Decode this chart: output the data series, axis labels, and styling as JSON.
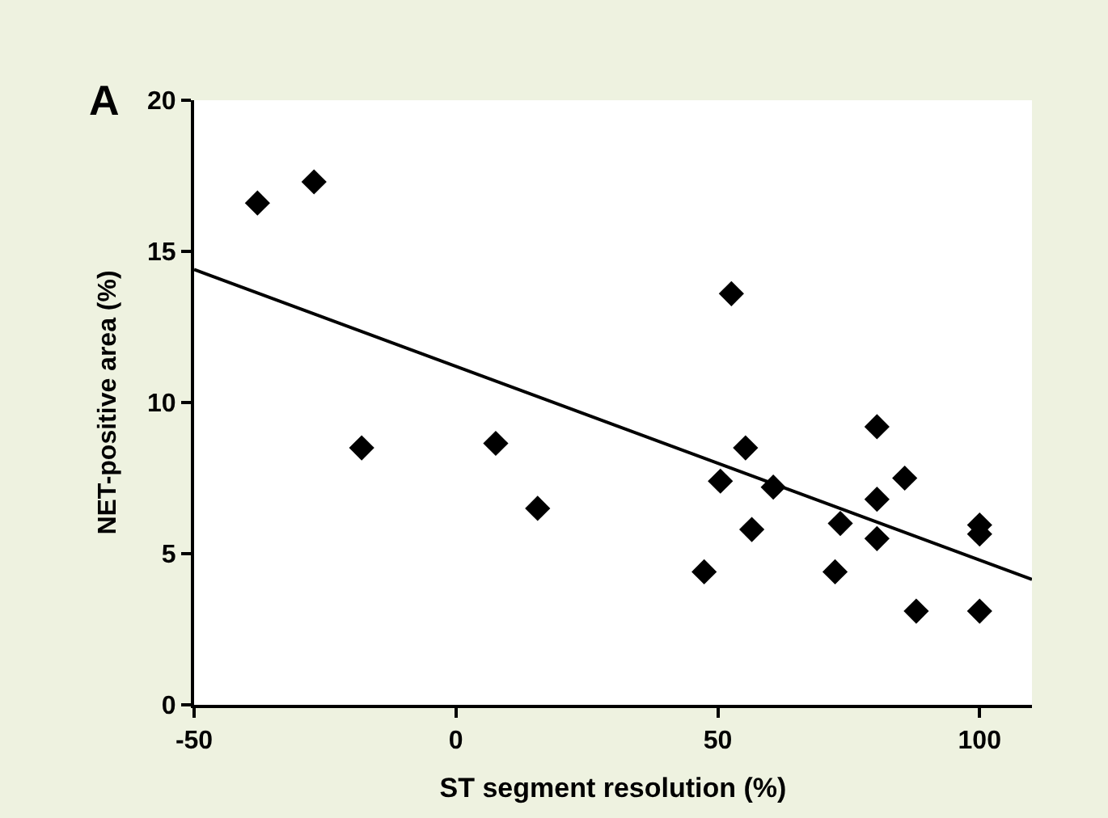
{
  "chart_data": {
    "type": "scatter",
    "xlabel": "ST segment resolution (%)",
    "ylabel": "NET-positive area (%)",
    "annotations": [
      "A"
    ],
    "xlim": [
      -50,
      110
    ],
    "xticks": [
      -50,
      0,
      50,
      100
    ],
    "ylim": [
      0,
      20
    ],
    "yticks": [
      0,
      5,
      10,
      15,
      20
    ],
    "series": [
      {
        "marker": "diamond",
        "color": "#000000",
        "x": [
          -37.9,
          -27.1,
          -18.0,
          7.6,
          15.6,
          52.6,
          80.4,
          55.3,
          50.5,
          60.6,
          85.7,
          80.4,
          73.4,
          56.5,
          80.4,
          100,
          100,
          47.4,
          72.4,
          87.9,
          100
        ],
        "values": [
          16.6,
          17.3,
          8.5,
          8.65,
          6.5,
          13.6,
          9.2,
          8.5,
          7.4,
          7.2,
          7.5,
          6.8,
          6.0,
          5.8,
          5.5,
          5.95,
          5.65,
          4.4,
          4.4,
          3.1,
          3.1
        ]
      },
      {
        "type": "line",
        "color": "#000000",
        "x": [
          -50,
          110
        ],
        "values": [
          14.4,
          4.15
        ]
      }
    ]
  }
}
